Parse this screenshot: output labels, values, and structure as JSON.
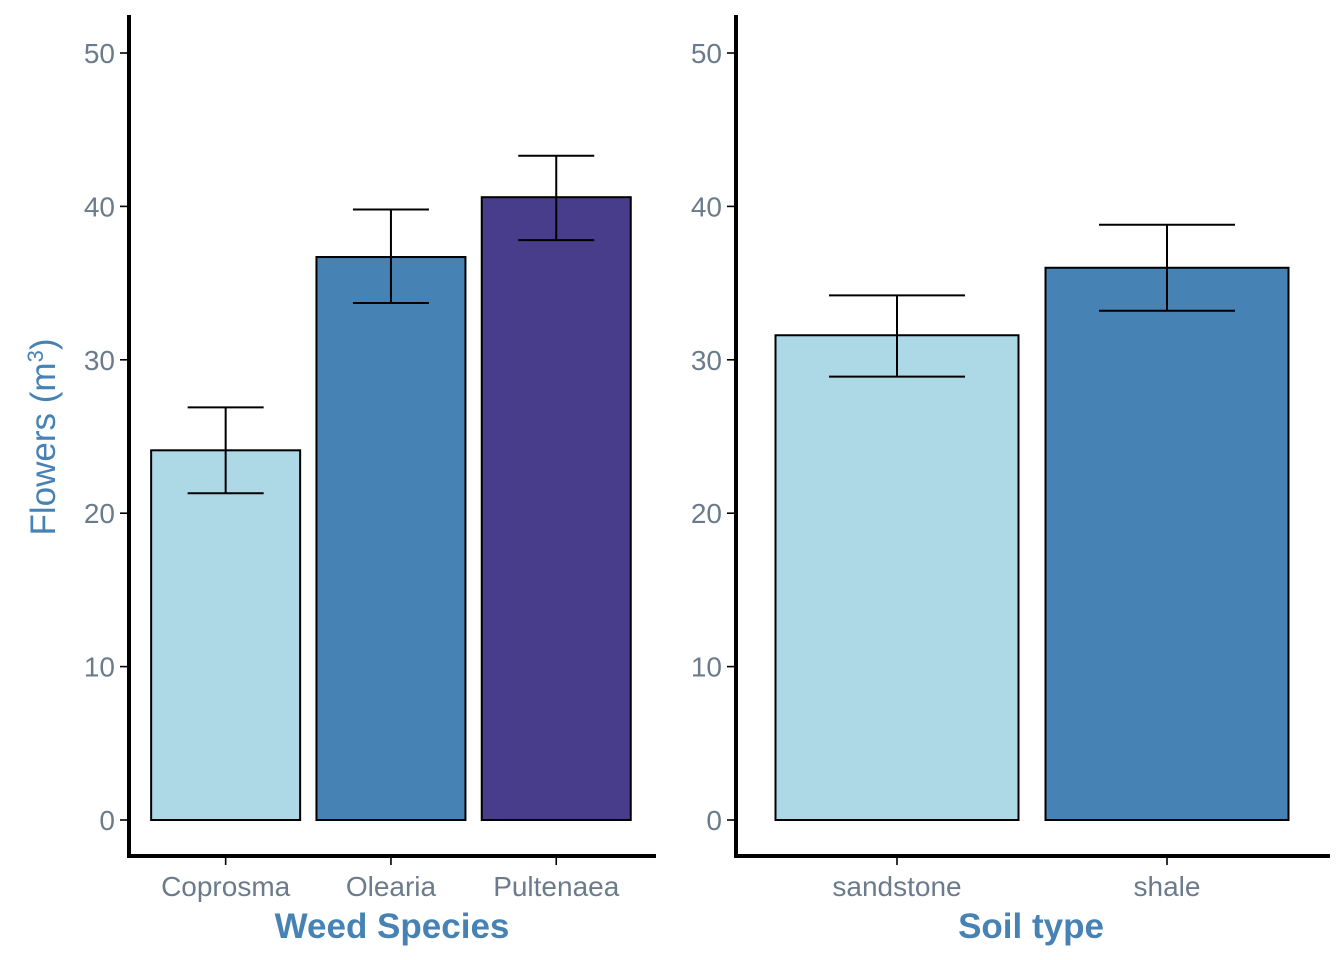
{
  "chart_data": [
    {
      "type": "bar",
      "title": "",
      "xlabel": "Weed Species",
      "ylabel_main": "Flowers",
      "ylabel_unit_base": "m",
      "ylabel_unit_sup": "3",
      "ylim": [
        0,
        50
      ],
      "yticks": [
        "0",
        "10",
        "20",
        "30",
        "40",
        "50"
      ],
      "categories": [
        "Coprosma",
        "Olearia",
        "Pultenaea"
      ],
      "values": [
        24.1,
        36.7,
        40.6
      ],
      "error_upper": [
        26.9,
        39.8,
        43.3
      ],
      "error_lower": [
        21.3,
        33.7,
        37.8
      ],
      "colors": [
        "#add8e6",
        "#4682b4",
        "#483d8b"
      ],
      "grid": false
    },
    {
      "type": "bar",
      "title": "",
      "xlabel": "Soil type",
      "ylim": [
        0,
        50
      ],
      "yticks": [
        "0",
        "10",
        "20",
        "30",
        "40",
        "50"
      ],
      "categories": [
        "sandstone",
        "shale"
      ],
      "values": [
        31.6,
        36.0
      ],
      "error_upper": [
        34.2,
        38.8
      ],
      "error_lower": [
        28.9,
        33.2
      ],
      "colors": [
        "#add8e6",
        "#4682b4"
      ],
      "grid": false
    }
  ]
}
